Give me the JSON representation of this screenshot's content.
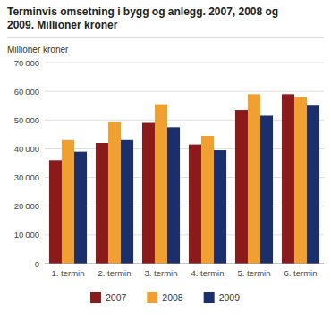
{
  "chart_data": {
    "type": "bar",
    "title": "Terminvis omsetning i bygg og anlegg. 2007, 2008 og\n2009. Millioner kroner",
    "y_label": "Millioner kroner",
    "categories": [
      "1. termin",
      "2. termin",
      "3. termin",
      "4. termin",
      "5. termin",
      "6. termin"
    ],
    "series": [
      {
        "name": "2007",
        "color": "#8B1A1A",
        "values": [
          36000,
          42000,
          49000,
          41500,
          53500,
          59000
        ]
      },
      {
        "name": "2008",
        "color": "#F0A030",
        "values": [
          43000,
          49500,
          55500,
          44500,
          59000,
          58000
        ]
      },
      {
        "name": "2009",
        "color": "#1A2F6B",
        "values": [
          39000,
          43000,
          47500,
          39500,
          51500,
          55000
        ]
      }
    ],
    "ylim": [
      0,
      70000
    ],
    "yticks": [
      0,
      {
        "value": 10000,
        "label": "10 000"
      },
      {
        "value": 20000,
        "label": "20 000"
      },
      {
        "value": 30000,
        "label": "30 000"
      },
      {
        "value": 40000,
        "label": "40 000"
      },
      {
        "value": 50000,
        "label": "50 000"
      },
      {
        "value": 60000,
        "label": "60 000"
      },
      {
        "value": 70000,
        "label": "70 000"
      }
    ],
    "grid": true,
    "legend": "bottom"
  }
}
